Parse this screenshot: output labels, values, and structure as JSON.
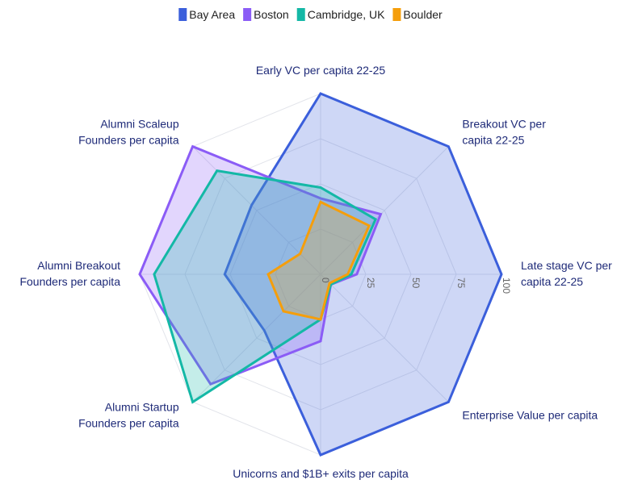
{
  "chart_data": {
    "type": "radar",
    "categories": [
      "Early VC per capita 22-25",
      "Breakout VC per\ncapita 22-25",
      "Late stage VC per\ncapita 22-25",
      "Enterprise Value per capita",
      "Unicorns and $1B+ exits per capita",
      "Alumni Startup\nFounders per capita",
      "Alumni Breakout\nFounders per capita",
      "Alumni Scaleup\nFounders per capita"
    ],
    "series": [
      {
        "name": "Bay Area",
        "color": "#3b5fdb",
        "values": [
          100,
          100,
          100,
          100,
          100,
          44,
          53,
          54
        ]
      },
      {
        "name": "Boston",
        "color": "#8b5cf6",
        "values": [
          42,
          47,
          20,
          8,
          37,
          86,
          100,
          100
        ]
      },
      {
        "name": "Cambridge, UK",
        "color": "#14b8a6",
        "values": [
          48,
          43,
          17,
          8,
          25,
          100,
          92,
          81
        ]
      },
      {
        "name": "Boulder",
        "color": "#f59e0b",
        "values": [
          40,
          38,
          15,
          7,
          25,
          29,
          29,
          16
        ]
      }
    ],
    "rlim": [
      0,
      100
    ],
    "rticks": [
      0,
      25,
      50,
      75,
      100
    ],
    "grid": true,
    "legend": "top"
  }
}
